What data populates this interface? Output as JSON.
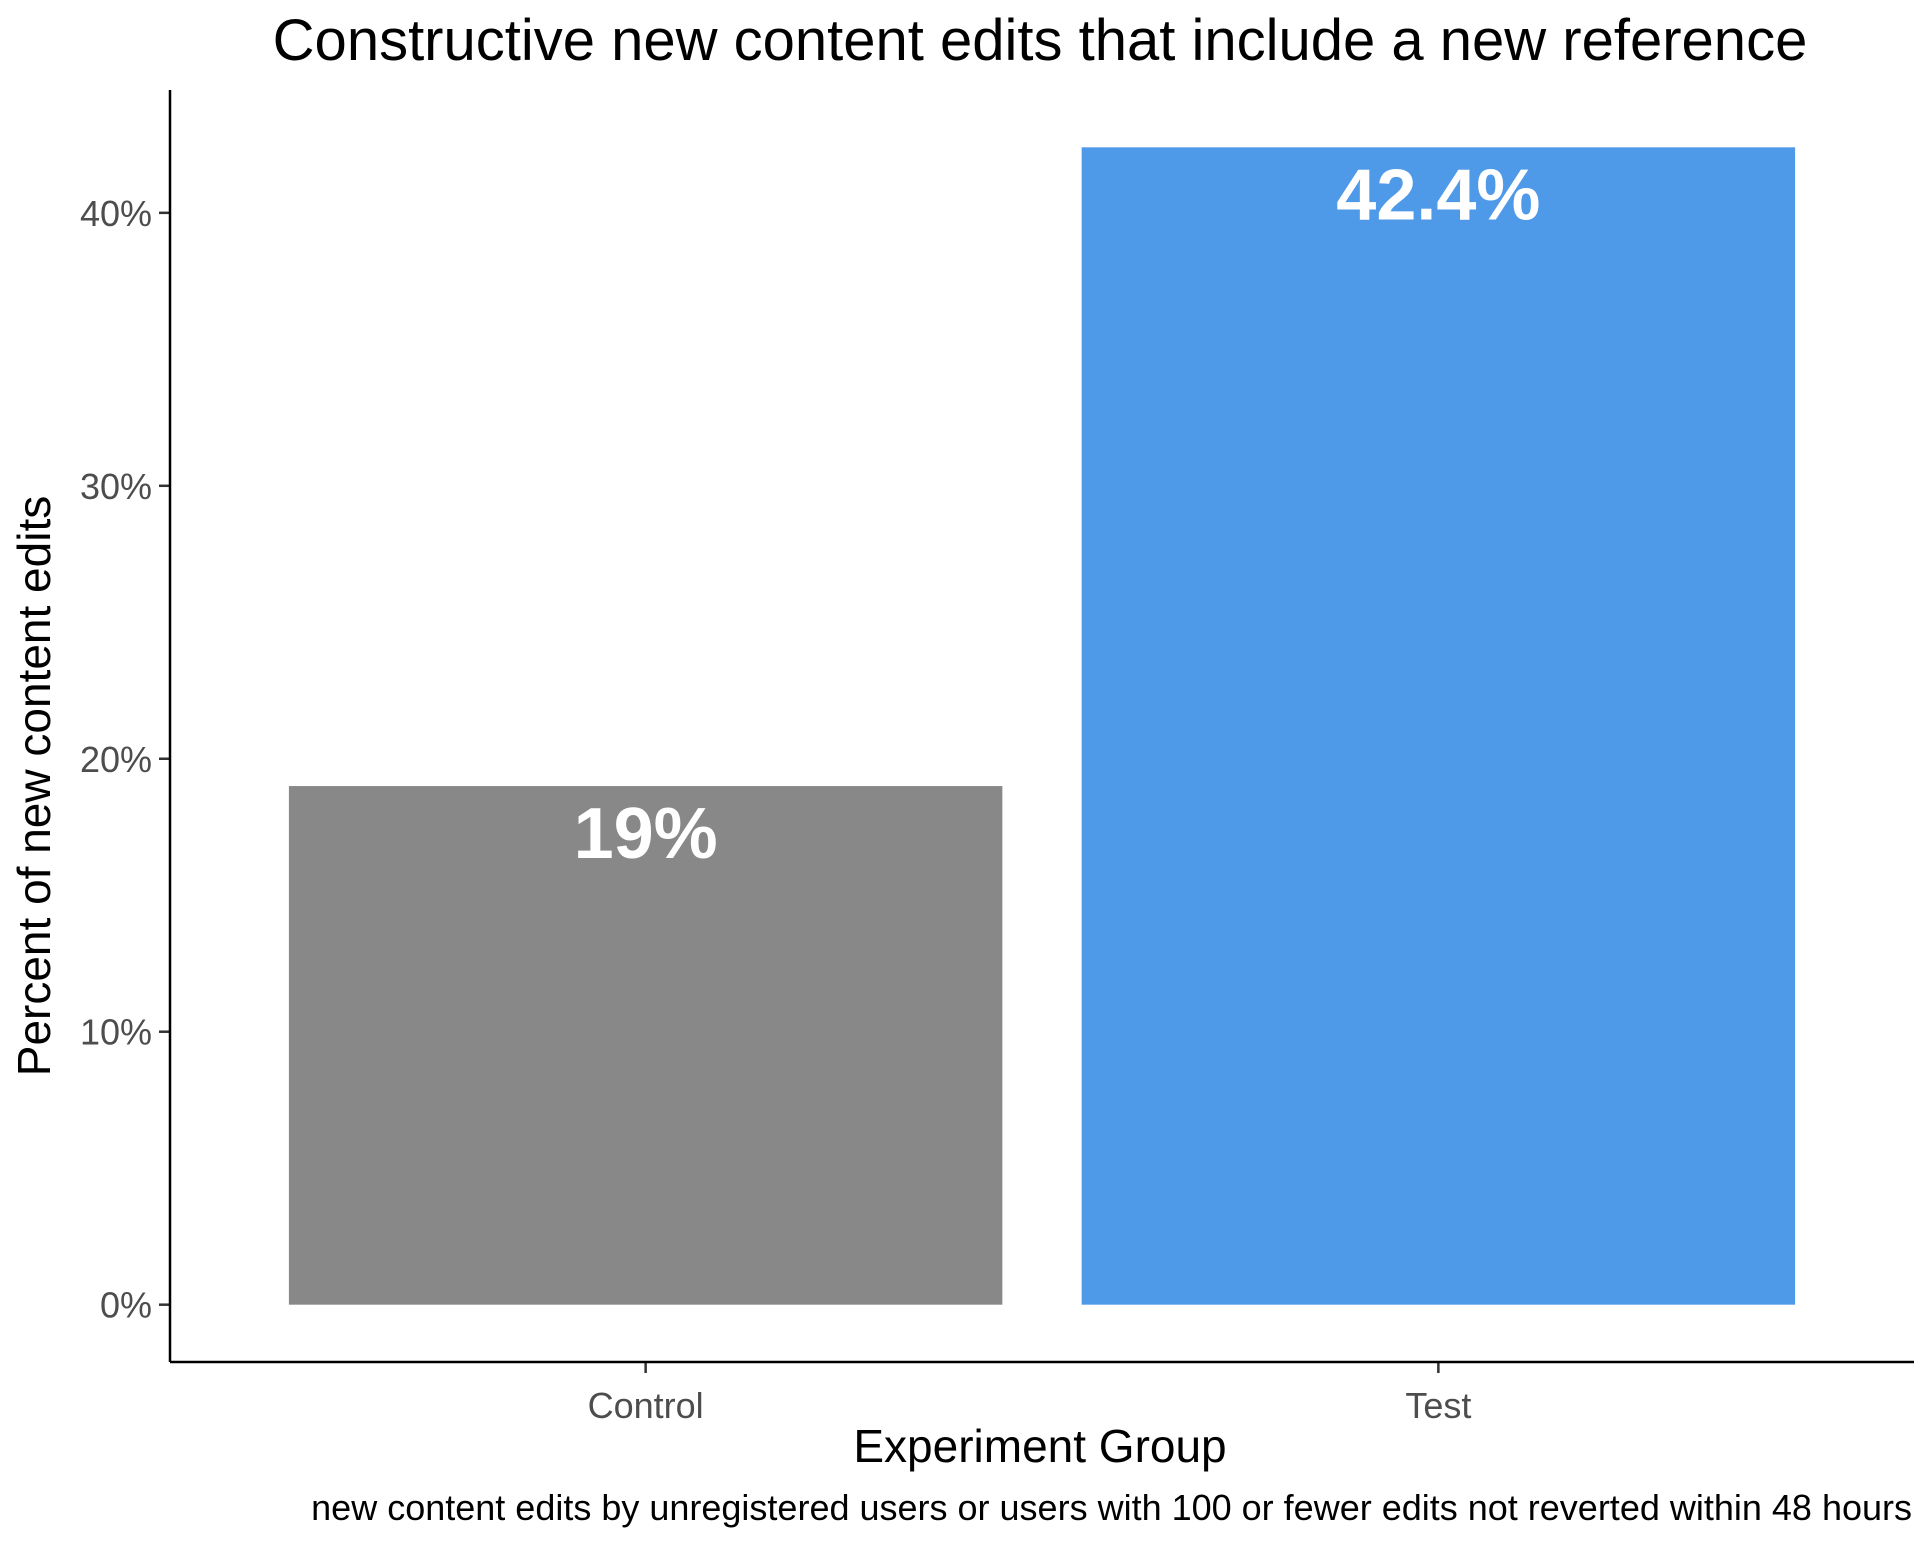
{
  "chart_data": {
    "type": "bar",
    "title": "Constructive new content edits that include a new reference",
    "xlabel": "Experiment Group",
    "ylabel": "Percent of new content edits",
    "caption": "new content edits by unregistered users or users with 100 or fewer edits not reverted within 48 hours",
    "categories": [
      "Control",
      "Test"
    ],
    "values": [
      19.0,
      42.4
    ],
    "value_labels": [
      "19%",
      "42.4%"
    ],
    "bar_colors": [
      "#888888",
      "#4e9ae8"
    ],
    "ylim": [
      -2.1,
      44.5
    ],
    "y_ticks": [
      0,
      10,
      20,
      30,
      40
    ],
    "y_tick_labels": [
      "0%",
      "10%",
      "20%",
      "30%",
      "40%"
    ],
    "grid": false,
    "legend": "none"
  }
}
